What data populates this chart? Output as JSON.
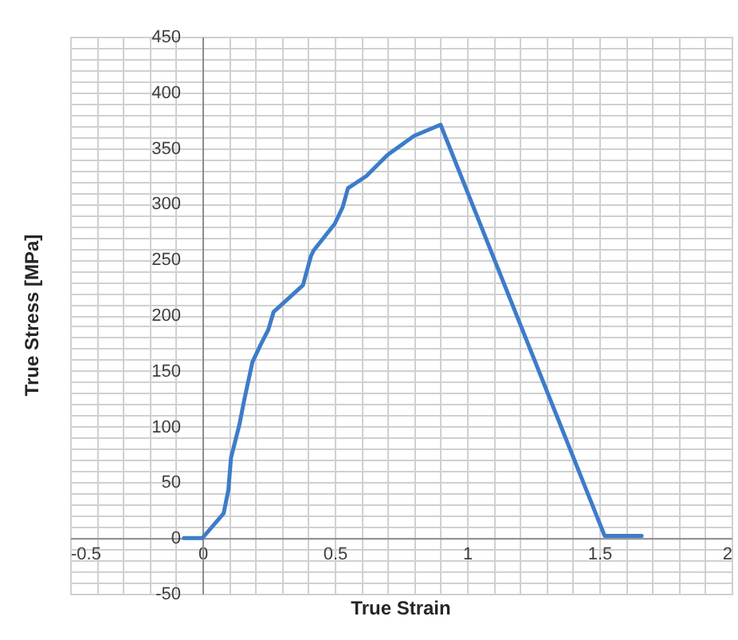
{
  "chart_data": {
    "type": "line",
    "xlabel": "True Strain",
    "ylabel": "True Stress [MPa]",
    "x": [
      -0.07,
      0,
      0.08,
      0.098,
      0.108,
      0.139,
      0.159,
      0.189,
      0.219,
      0.249,
      0.269,
      0.38,
      0.41,
      0.42,
      0.5,
      0.53,
      0.55,
      0.62,
      0.7,
      0.8,
      0.9,
      1.52,
      1.66
    ],
    "series": [
      {
        "color": "#3d7cc9",
        "values": [
          0,
          0,
          22,
          43,
          72,
          101,
          125,
          158,
          173,
          187,
          203,
          227,
          253,
          258,
          282,
          297,
          314,
          325,
          344,
          361,
          371,
          2,
          2
        ]
      }
    ],
    "xlim": [
      -0.5,
      2
    ],
    "ylim": [
      -50,
      450
    ],
    "xticks": [
      -0.5,
      {
        "value": -0.4,
        "label": null
      },
      {
        "value": -0.3,
        "label": null
      },
      {
        "value": -0.2,
        "label": null
      },
      {
        "value": -0.1,
        "label": null
      },
      0,
      {
        "value": 0.1,
        "label": null
      },
      {
        "value": 0.2,
        "label": null
      },
      {
        "value": 0.3,
        "label": null
      },
      {
        "value": 0.4,
        "label": null
      },
      0.5,
      {
        "value": 0.6,
        "label": null
      },
      {
        "value": 0.7,
        "label": null
      },
      {
        "value": 0.8,
        "label": null
      },
      {
        "value": 0.9,
        "label": null
      },
      1,
      {
        "value": 1.1,
        "label": null
      },
      {
        "value": 1.2,
        "label": null
      },
      {
        "value": 1.3,
        "label": null
      },
      {
        "value": 1.4,
        "label": null
      },
      1.5,
      {
        "value": 1.6,
        "label": null
      },
      {
        "value": 1.7,
        "label": null
      },
      {
        "value": 1.8,
        "label": null
      },
      {
        "value": 1.9,
        "label": null
      },
      2
    ],
    "yticks": [
      -50,
      {
        "value": -40,
        "label": null
      },
      {
        "value": -30,
        "label": null
      },
      {
        "value": -20,
        "label": null
      },
      {
        "value": -10,
        "label": null
      },
      0,
      {
        "value": 10,
        "label": null
      },
      {
        "value": 20,
        "label": null
      },
      {
        "value": 30,
        "label": null
      },
      {
        "value": 40,
        "label": null
      },
      50,
      {
        "value": 60,
        "label": null
      },
      {
        "value": 70,
        "label": null
      },
      {
        "value": 80,
        "label": null
      },
      {
        "value": 90,
        "label": null
      },
      100,
      {
        "value": 110,
        "label": null
      },
      {
        "value": 120,
        "label": null
      },
      {
        "value": 130,
        "label": null
      },
      {
        "value": 140,
        "label": null
      },
      150,
      {
        "value": 160,
        "label": null
      },
      {
        "value": 170,
        "label": null
      },
      {
        "value": 180,
        "label": null
      },
      {
        "value": 190,
        "label": null
      },
      200,
      {
        "value": 210,
        "label": null
      },
      {
        "value": 220,
        "label": null
      },
      {
        "value": 230,
        "label": null
      },
      {
        "value": 240,
        "label": null
      },
      250,
      {
        "value": 260,
        "label": null
      },
      {
        "value": 270,
        "label": null
      },
      {
        "value": 280,
        "label": null
      },
      {
        "value": 290,
        "label": null
      },
      300,
      {
        "value": 310,
        "label": null
      },
      {
        "value": 320,
        "label": null
      },
      {
        "value": 330,
        "label": null
      },
      {
        "value": 340,
        "label": null
      },
      350,
      {
        "value": 360,
        "label": null
      },
      {
        "value": 370,
        "label": null
      },
      {
        "value": 380,
        "label": null
      },
      {
        "value": 390,
        "label": null
      },
      400,
      {
        "value": 410,
        "label": null
      },
      {
        "value": 420,
        "label": null
      },
      {
        "value": 430,
        "label": null
      },
      {
        "value": 440,
        "label": null
      },
      450
    ],
    "grid": true,
    "marker": "none",
    "line_style": "solid"
  }
}
